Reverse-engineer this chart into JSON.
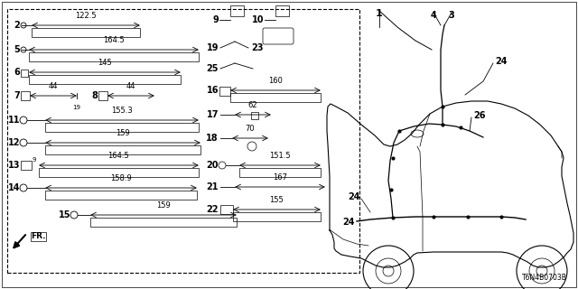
{
  "bg_color": "#ffffff",
  "line_color": "#000000",
  "text_color": "#000000",
  "diagram_id": "T6N4B0703B",
  "fig_w": 6.4,
  "fig_h": 3.2,
  "dpi": 100
}
